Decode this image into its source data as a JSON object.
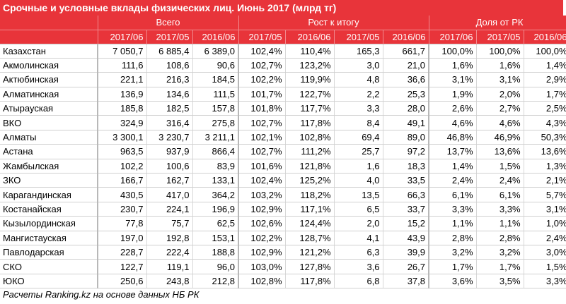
{
  "title": "Срочные и условные вклады физических лиц. Июнь 2017 (млрд тг)",
  "groups": [
    "Всего",
    "Рост к итогу",
    "Доля от РК"
  ],
  "years": [
    "2017/06",
    "2017/05",
    "2016/06",
    "2017/05",
    "2016/06",
    "2017/05",
    "2016/06",
    "2017/06",
    "2017/05",
    "2016/06"
  ],
  "rows": [
    [
      "Казахстан",
      "7 050,7",
      "6 885,4",
      "6 389,0",
      "102,4%",
      "110,4%",
      "165,3",
      "661,7",
      "100,0%",
      "100,0%",
      "100,0%"
    ],
    [
      "Акмолинская",
      "111,6",
      "108,6",
      "90,6",
      "102,7%",
      "123,2%",
      "3,0",
      "21,0",
      "1,6%",
      "1,6%",
      "1,4%"
    ],
    [
      "Актюбинская",
      "221,1",
      "216,3",
      "184,5",
      "102,2%",
      "119,9%",
      "4,8",
      "36,6",
      "3,1%",
      "3,1%",
      "2,9%"
    ],
    [
      "Алматинская",
      "136,9",
      "134,6",
      "111,5",
      "101,7%",
      "122,7%",
      "2,2",
      "25,3",
      "1,9%",
      "2,0%",
      "1,7%"
    ],
    [
      "Атырауская",
      "185,8",
      "182,5",
      "157,8",
      "101,8%",
      "117,7%",
      "3,3",
      "28,0",
      "2,6%",
      "2,7%",
      "2,5%"
    ],
    [
      "ВКО",
      "324,9",
      "316,4",
      "275,8",
      "102,7%",
      "117,8%",
      "8,4",
      "49,1",
      "4,6%",
      "4,6%",
      "4,3%"
    ],
    [
      "Алматы",
      "3 300,1",
      "3 230,7",
      "3 211,1",
      "102,1%",
      "102,8%",
      "69,4",
      "89,0",
      "46,8%",
      "46,9%",
      "50,3%"
    ],
    [
      "Астана",
      "963,5",
      "937,9",
      "866,4",
      "102,7%",
      "111,2%",
      "25,7",
      "97,2",
      "13,7%",
      "13,6%",
      "13,6%"
    ],
    [
      "Жамбылская",
      "102,2",
      "100,6",
      "83,9",
      "101,6%",
      "121,8%",
      "1,6",
      "18,3",
      "1,4%",
      "1,5%",
      "1,3%"
    ],
    [
      "ЗКО",
      "166,7",
      "162,7",
      "133,1",
      "102,4%",
      "125,2%",
      "4,0",
      "33,5",
      "2,4%",
      "2,4%",
      "2,1%"
    ],
    [
      "Карагандинская",
      "430,5",
      "417,0",
      "364,2",
      "103,2%",
      "118,2%",
      "13,5",
      "66,3",
      "6,1%",
      "6,1%",
      "5,7%"
    ],
    [
      "Костанайская",
      "230,7",
      "224,1",
      "196,9",
      "102,9%",
      "117,1%",
      "6,5",
      "33,7",
      "3,3%",
      "3,3%",
      "3,1%"
    ],
    [
      "Кызылординская",
      "77,8",
      "75,7",
      "62,5",
      "102,6%",
      "124,4%",
      "2,0",
      "15,2",
      "1,1%",
      "1,1%",
      "1,0%"
    ],
    [
      "Мангистауская",
      "197,0",
      "192,8",
      "153,1",
      "102,2%",
      "128,7%",
      "4,1",
      "43,9",
      "2,8%",
      "2,8%",
      "2,4%"
    ],
    [
      "Павлодарская",
      "228,7",
      "222,4",
      "188,8",
      "102,9%",
      "121,2%",
      "6,3",
      "39,9",
      "3,2%",
      "3,2%",
      "3,0%"
    ],
    [
      "СКО",
      "122,7",
      "119,1",
      "96,0",
      "103,0%",
      "127,8%",
      "3,6",
      "26,7",
      "1,7%",
      "1,7%",
      "1,5%"
    ],
    [
      "ЮКО",
      "250,6",
      "243,8",
      "212,8",
      "102,8%",
      "117,8%",
      "6,8",
      "37,8",
      "3,6%",
      "3,5%",
      "3,3%"
    ]
  ],
  "footer": "Расчеты Ranking.kz на основе данных НБ РК",
  "colors": {
    "header_bg": "#e8343a",
    "header_text": "#ffffff"
  }
}
